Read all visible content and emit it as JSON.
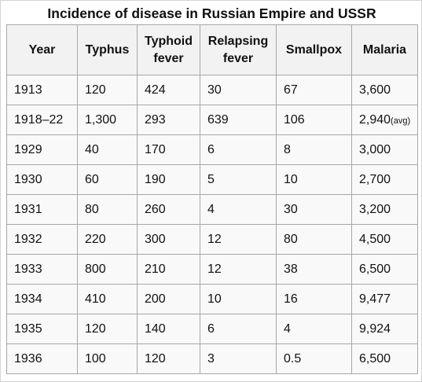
{
  "caption": "Incidence of disease in Russian Empire and USSR",
  "table": {
    "headers": [
      {
        "line1": "Year",
        "line2": ""
      },
      {
        "line1": "Typhus",
        "line2": ""
      },
      {
        "line1": "Typhoid",
        "line2": "fever"
      },
      {
        "line1": "Relapsing",
        "line2": "fever"
      },
      {
        "line1": "Smallpox",
        "line2": ""
      },
      {
        "line1": "Malaria",
        "line2": ""
      }
    ],
    "rows": [
      {
        "year": "1913",
        "typhus": "120",
        "typhoid": "424",
        "relapsing": "30",
        "smallpox": "67",
        "malaria": "3,600",
        "malaria_note": ""
      },
      {
        "year": "1918–22",
        "typhus": "1,300",
        "typhoid": "293",
        "relapsing": "639",
        "smallpox": "106",
        "malaria": "2,940",
        "malaria_note": "(avg)"
      },
      {
        "year": "1929",
        "typhus": "40",
        "typhoid": "170",
        "relapsing": "6",
        "smallpox": "8",
        "malaria": "3,000",
        "malaria_note": ""
      },
      {
        "year": "1930",
        "typhus": "60",
        "typhoid": "190",
        "relapsing": "5",
        "smallpox": "10",
        "malaria": "2,700",
        "malaria_note": ""
      },
      {
        "year": "1931",
        "typhus": "80",
        "typhoid": "260",
        "relapsing": "4",
        "smallpox": "30",
        "malaria": "3,200",
        "malaria_note": ""
      },
      {
        "year": "1932",
        "typhus": "220",
        "typhoid": "300",
        "relapsing": "12",
        "smallpox": "80",
        "malaria": "4,500",
        "malaria_note": ""
      },
      {
        "year": "1933",
        "typhus": "800",
        "typhoid": "210",
        "relapsing": "12",
        "smallpox": "38",
        "malaria": "6,500",
        "malaria_note": ""
      },
      {
        "year": "1934",
        "typhus": "410",
        "typhoid": "200",
        "relapsing": "10",
        "smallpox": "16",
        "malaria": "9,477",
        "malaria_note": ""
      },
      {
        "year": "1935",
        "typhus": "120",
        "typhoid": "140",
        "relapsing": "6",
        "smallpox": "4",
        "malaria": "9,924",
        "malaria_note": ""
      },
      {
        "year": "1936",
        "typhus": "100",
        "typhoid": "120",
        "relapsing": "3",
        "smallpox": "0.5",
        "malaria": "6,500",
        "malaria_note": ""
      }
    ]
  },
  "colors": {
    "header_background": "#f2f2f2",
    "cell_background": "#f9f9f9",
    "border": "#a7a7a7",
    "text": "#111111"
  }
}
